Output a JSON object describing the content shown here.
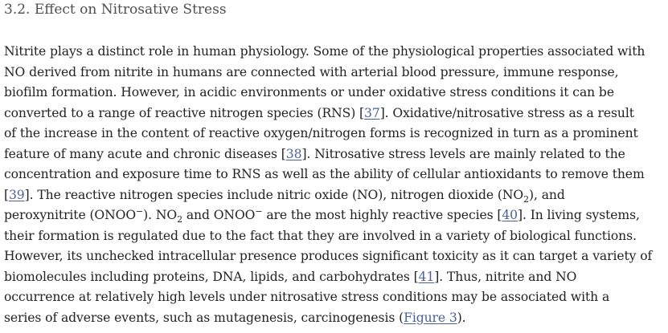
{
  "heading": "3.2. Effect on Nitrosative Stress",
  "paragraph": {
    "line1": "Nitrite plays a distinct role in human physiology. Some of the physiological properties associated with",
    "line2": "NO derived from nitrite in humans are connected with arterial blood pressure, immune response,",
    "line3": "biofilm formation. However, in acidic environments or under oxidative stress conditions it can be",
    "line4_a": "converted to a range of reactive nitrogen species (RNS) [",
    "ref37": "37",
    "line4_b": "]. Oxidative/nitrosative stress as a result",
    "line5": "of the increase in the content of reactive oxygen/nitrogen forms is recognized in turn as a prominent",
    "line6_a": "feature of many acute and chronic diseases [",
    "ref38": "38",
    "line6_b": "]. Nitrosative stress levels are mainly related to the",
    "line7": "concentration and exposure time to RNS as well as the ability of cellular antioxidants to remove them",
    "line8_a": "[",
    "ref39": "39",
    "line8_b": "]. The reactive nitrogen species include nitric oxide (NO), nitrogen dioxide (NO",
    "sub2_a": "2",
    "line8_c": "), and",
    "line9_a": "peroxynitrite (ONOO",
    "sup_minus_a": "−",
    "line9_b": "). NO",
    "sub2_b": "2",
    "line9_c": " and ONOO",
    "sup_minus_b": "−",
    "line9_d": " are the most highly reactive species [",
    "ref40": "40",
    "line9_e": "]. In living systems,",
    "line10": "their formation is regulated due to the fact that they are involved in a variety of biological functions.",
    "line11": "However, its unchecked intracellular presence produces significant toxicity as it can target a variety of",
    "line12_a": "biomolecules including proteins, DNA, lipids, and carbohydrates [",
    "ref41": "41",
    "line12_b": "]. Thus, nitrite and NO",
    "line13": "occurrence at relatively high levels under nitrosative stress conditions may be associated with a",
    "line14_a": "series of adverse events, such as mutagenesis, carcinogenesis (",
    "figure_ref": "Figure 3",
    "line14_b": ")."
  },
  "colors": {
    "heading": "#4f4f4f",
    "text": "#222222",
    "link": "#4a5f9a"
  }
}
